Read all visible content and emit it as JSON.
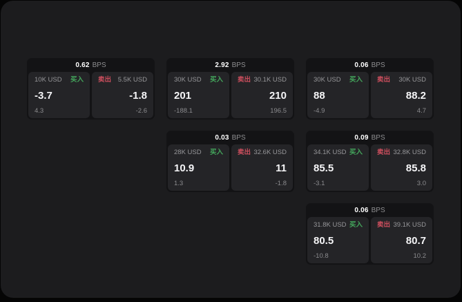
{
  "labels": {
    "bps_unit": "BPS",
    "buy": "买入",
    "sell": "卖出"
  },
  "colors": {
    "buy_accent": "#44a65c",
    "sell_accent": "#cb4e5d",
    "panel_bg": "#1c1c1e",
    "card_bg": "#131315",
    "tile_bg": "#242427"
  },
  "cards": [
    {
      "row": "1",
      "col": "1",
      "bps": "0.62",
      "buy": {
        "notional": "10K USD",
        "value": "-3.7",
        "delta": "4.3"
      },
      "sell": {
        "notional": "5.5K USD",
        "value": "-1.8",
        "delta": "-2.6"
      }
    },
    {
      "row": "1",
      "col": "2",
      "bps": "2.92",
      "buy": {
        "notional": "30K USD",
        "value": "201",
        "delta": "-188.1"
      },
      "sell": {
        "notional": "30.1K USD",
        "value": "210",
        "delta": "196.5"
      }
    },
    {
      "row": "1",
      "col": "3",
      "bps": "0.06",
      "buy": {
        "notional": "30K USD",
        "value": "88",
        "delta": "-4.9"
      },
      "sell": {
        "notional": "30K USD",
        "value": "88.2",
        "delta": "4.7"
      }
    },
    {
      "row": "2",
      "col": "2",
      "bps": "0.03",
      "buy": {
        "notional": "28K USD",
        "value": "10.9",
        "delta": "1.3"
      },
      "sell": {
        "notional": "32.6K USD",
        "value": "11",
        "delta": "-1.8"
      }
    },
    {
      "row": "2",
      "col": "3",
      "bps": "0.09",
      "buy": {
        "notional": "34.1K USD",
        "value": "85.5",
        "delta": "-3.1"
      },
      "sell": {
        "notional": "32.8K USD",
        "value": "85.8",
        "delta": "3.0"
      }
    },
    {
      "row": "3",
      "col": "3",
      "bps": "0.06",
      "buy": {
        "notional": "31.8K USD",
        "value": "80.5",
        "delta": "-10.8"
      },
      "sell": {
        "notional": "39.1K USD",
        "value": "80.7",
        "delta": "10.2"
      }
    }
  ]
}
